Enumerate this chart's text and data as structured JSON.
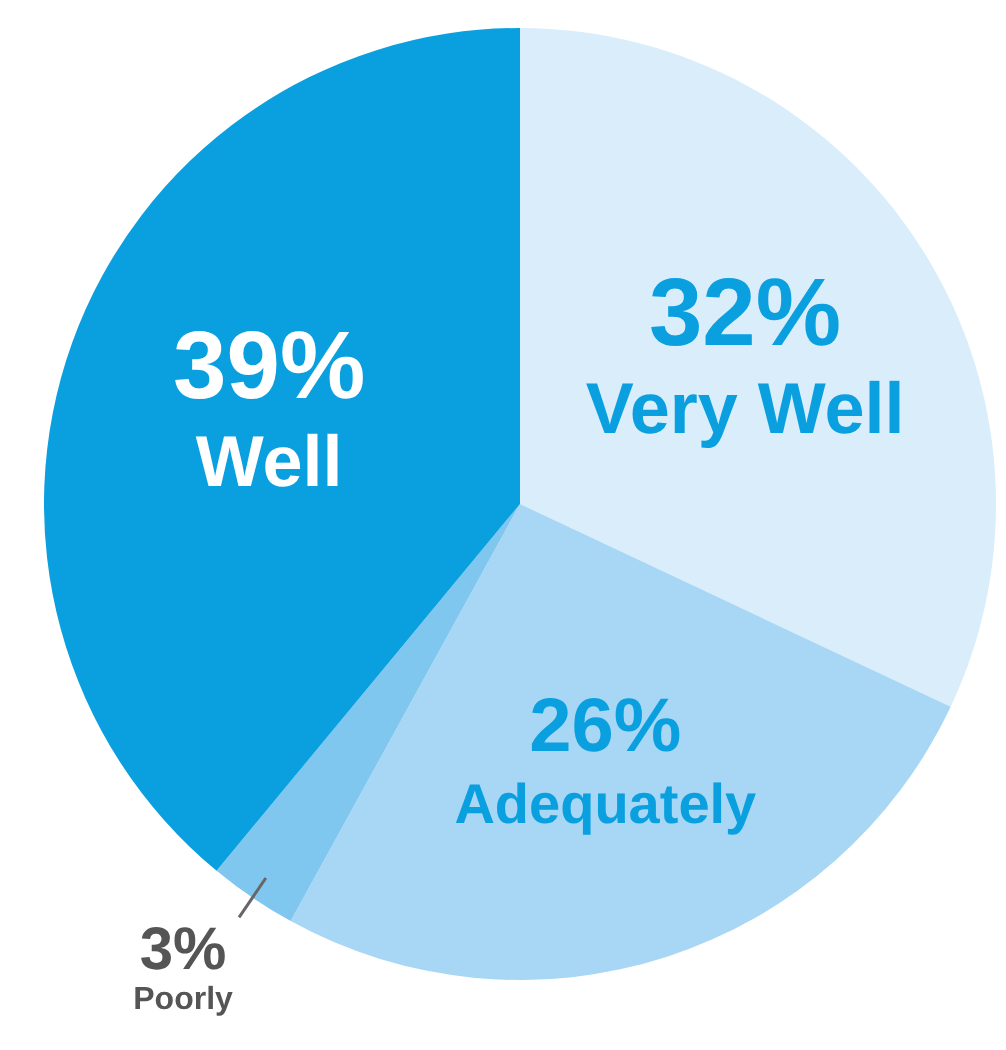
{
  "chart_data": {
    "type": "pie",
    "categories": [
      "Very Well",
      "Adequately",
      "Poorly",
      "Well"
    ],
    "values": [
      32,
      26,
      3,
      39
    ],
    "value_labels": [
      "32%",
      "26%",
      "3%",
      "39%"
    ],
    "colors": [
      "#d9edfa",
      "#a8d7f5",
      "#7fc7ef",
      "#0aa0e0"
    ]
  }
}
